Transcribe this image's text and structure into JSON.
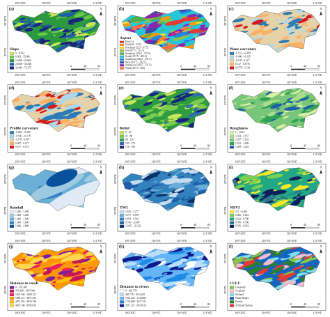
{
  "lon_labels": [
    "109°30'E",
    "110°0'E",
    "110°30'E",
    "111°0'E"
  ],
  "lat_labels": [
    "29°30'N",
    "29°0'N"
  ],
  "scale_labels": [
    "0",
    "40",
    "80"
  ],
  "north": "N",
  "panels": [
    {
      "label": "(a)",
      "title": "Slope",
      "classes": [
        {
          "name": "0 - 8.302",
          "color": "#c7e65a"
        },
        {
          "name": "8.302 - 15.600",
          "color": "#6cc84a"
        },
        {
          "name": "15.600 - 23.666",
          "color": "#2b9a3e"
        },
        {
          "name": "23.666 - 33.446",
          "color": "#1f5fa8"
        },
        {
          "name": "33.446 - 73.275",
          "color": "#1a237e"
        }
      ]
    },
    {
      "label": "(b)",
      "title": "Aspect",
      "classes": [
        {
          "name": "Flat (-1)",
          "color": "#e53935"
        },
        {
          "name": "North (0 - 22.5)",
          "color": "#ff9800"
        },
        {
          "name": "Northeast (22.5 - 67.5)",
          "color": "#fdd835"
        },
        {
          "name": "East (67.5 - 112.5)",
          "color": "#8bc34a"
        },
        {
          "name": "Southeast (112.5 - 157.5)",
          "color": "#4caf50"
        },
        {
          "name": "South (157.5 - 202.5)",
          "color": "#26c6da"
        },
        {
          "name": "Southwest (202.5 - 247.5)",
          "color": "#1e88e5"
        },
        {
          "name": "West (247.5 - 292.5)",
          "color": "#3949ab"
        },
        {
          "name": "Northwest (292.5 - 337.5)",
          "color": "#8e24aa"
        },
        {
          "name": "North (337.5 - 360)",
          "color": "#ff7043"
        }
      ]
    },
    {
      "label": "(c)",
      "title": "Plane curvature",
      "classes": [
        {
          "name": "-6.553 - -0.400",
          "color": "#2c7bb6"
        },
        {
          "name": "-0.400 - -0.135",
          "color": "#abd9e9"
        },
        {
          "name": "-0.135 - 0.127",
          "color": "#e6d2a8"
        },
        {
          "name": "0.127 - 0.6776",
          "color": "#fdae61"
        },
        {
          "name": "0.6776 - 5.130",
          "color": "#d7191c"
        }
      ]
    },
    {
      "label": "(d)",
      "title": "Profile curvature",
      "classes": [
        {
          "name": "-6.902 - -0.569",
          "color": "#2c7bb6"
        },
        {
          "name": "-0.569 - -0.178",
          "color": "#abd9e9"
        },
        {
          "name": "-0.178 - 0.007",
          "color": "#e6d2a8"
        },
        {
          "name": "0.007 - 0.477",
          "color": "#fdae61"
        },
        {
          "name": "0.477 - 6.573",
          "color": "#d7191c"
        }
      ]
    },
    {
      "label": "(e)",
      "title": "Relief",
      "classes": [
        {
          "name": "0 - 45",
          "color": "#c7e65a"
        },
        {
          "name": "45 - 80",
          "color": "#7ccd4f"
        },
        {
          "name": "80 - 120",
          "color": "#2e9c3f"
        },
        {
          "name": "120 - 176",
          "color": "#2f6db3"
        },
        {
          "name": "176 - 706",
          "color": "#1a237e"
        }
      ]
    },
    {
      "label": "(f)",
      "title": "Roughness",
      "classes": [
        {
          "name": "1 - 1.034",
          "color": "#d9f0a3"
        },
        {
          "name": "1.034 - 1.057",
          "color": "#addd8e"
        },
        {
          "name": "1.057 - 1.102",
          "color": "#78c679"
        },
        {
          "name": "1.102 - 1.209",
          "color": "#31a354"
        },
        {
          "name": "1.209 - 3.202",
          "color": "#1f5fa8"
        }
      ]
    },
    {
      "label": "(g)",
      "title": "Rainfall",
      "classes": [
        {
          "name": "1,200 - 1,300",
          "color": "#deebf7"
        },
        {
          "name": "1,300 - 1,400",
          "color": "#9ecae1"
        },
        {
          "name": "1,400 - 1,500",
          "color": "#6baed6"
        },
        {
          "name": "1,500 - 1,600",
          "color": "#3182bd"
        },
        {
          "name": "1,600 - 1,800",
          "color": "#08519c"
        }
      ]
    },
    {
      "label": "(h)",
      "title": "TWI",
      "classes": [
        {
          "name": "1.625 - 5.277",
          "color": "#c6dbef"
        },
        {
          "name": "5.277 - 6.878",
          "color": "#6baed6"
        },
        {
          "name": "6.878 - 9.516",
          "color": "#3182bd"
        },
        {
          "name": "9.516 - 12.967",
          "color": "#1f5fa8"
        },
        {
          "name": "12.967 - 23.352",
          "color": "#08306b"
        }
      ]
    },
    {
      "label": "(i)",
      "title": "NDVI",
      "classes": [
        {
          "name": "-0.1 - 0.406",
          "color": "#fde725"
        },
        {
          "name": "0.406 - 0.622",
          "color": "#7ad151"
        },
        {
          "name": "0.622 - 0.700",
          "color": "#22a884"
        },
        {
          "name": "0.700 - 0.766",
          "color": "#2a788e"
        },
        {
          "name": "0.766 - 0.923",
          "color": "#0d1f5c"
        }
      ]
    },
    {
      "label": "(j)",
      "title": "Distance to roads",
      "classes": [
        {
          "name": "0 - 376.368",
          "color": "#7b1fa2"
        },
        {
          "name": "376.368 - 1007.946",
          "color": "#c2185b"
        },
        {
          "name": "1007.946 - 1889.113",
          "color": "#e91e63"
        },
        {
          "name": "1889.113 - 2871.554",
          "color": "#ff9800"
        },
        {
          "name": "2871.554 - 4035.746",
          "color": "#ffc107"
        },
        {
          "name": "4035.746 - 8305.013",
          "color": "#ffd54f"
        }
      ]
    },
    {
      "label": "(k)",
      "title": "Distance to rivers",
      "classes": [
        {
          "name": "0 - 405.778",
          "color": "#ffffff"
        },
        {
          "name": "405.778 - 1014.445",
          "color": "#bbdefb"
        },
        {
          "name": "1014.445 - 1734.869",
          "color": "#64b5f6"
        },
        {
          "name": "1734.869 - 2617.321",
          "color": "#1e88e5"
        },
        {
          "name": "2617.321 - 6018.613",
          "color": "#0d1a8c"
        }
      ]
    },
    {
      "label": "(l)",
      "title": "LULC",
      "classes": [
        {
          "name": "Grassland",
          "color": "#8bc34a"
        },
        {
          "name": "Cropland",
          "color": "#f8bbd0"
        },
        {
          "name": "Wetland",
          "color": "#80deea"
        },
        {
          "name": "Water Bodies",
          "color": "#1565c0"
        },
        {
          "name": "Forests",
          "color": "#2e7d32"
        },
        {
          "name": "Artificial Surface",
          "color": "#e53935"
        }
      ]
    }
  ]
}
